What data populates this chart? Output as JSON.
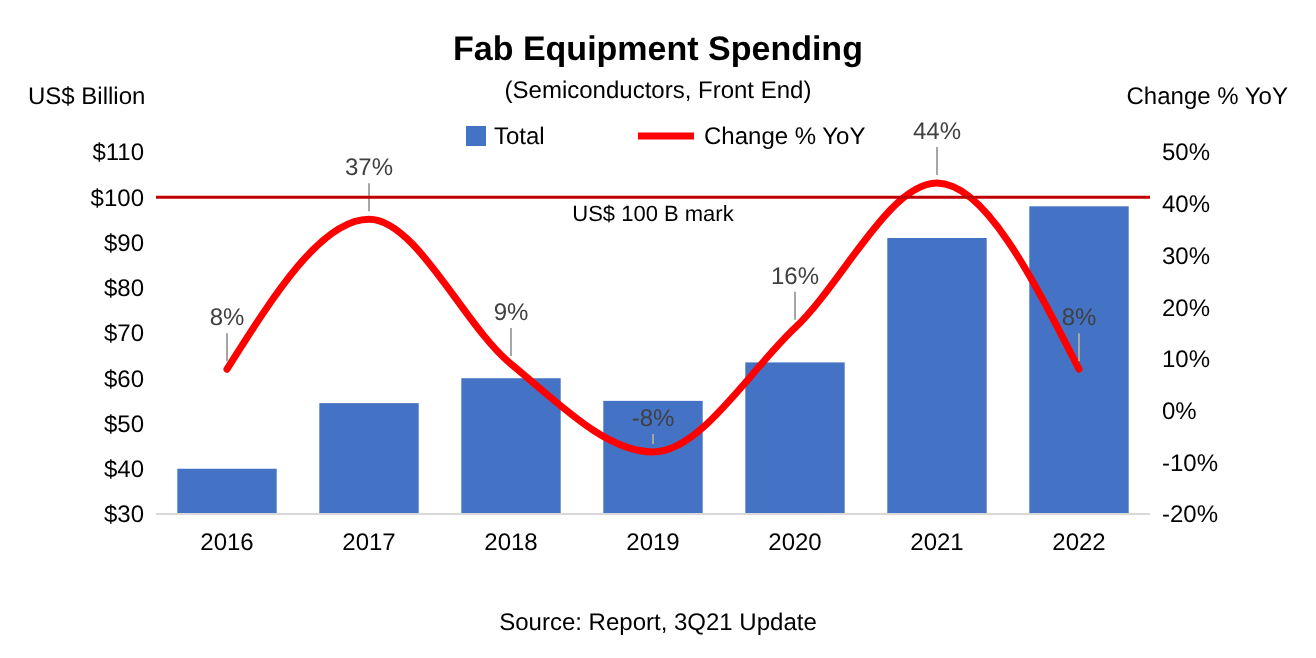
{
  "chart_data": {
    "type": "bar",
    "title": "Fab Equipment Spending",
    "subtitle": "(Semiconductors, Front End)",
    "ylabel": "US$ Billion",
    "y2label": "Change % YoY",
    "categories": [
      "2016",
      "2017",
      "2018",
      "2019",
      "2020",
      "2021",
      "2022"
    ],
    "series": [
      {
        "name": "Total",
        "color": "#4472c4",
        "values": [
          40,
          54.5,
          60,
          55,
          63.5,
          91,
          98
        ]
      },
      {
        "name": "Change % YoY",
        "type": "line",
        "axis": "y2",
        "color": "#ff0000",
        "values": [
          8,
          37,
          9,
          -8,
          16,
          44,
          8
        ],
        "value_labels": [
          "8%",
          "37%",
          "9%",
          "-8%",
          "16%",
          "44%",
          "8%"
        ]
      }
    ],
    "ylim": [
      30,
      110
    ],
    "yticks": [
      {
        "value": 30,
        "label": "$30"
      },
      {
        "value": 40,
        "label": "$40"
      },
      {
        "value": 50,
        "label": "$50"
      },
      {
        "value": 60,
        "label": "$60"
      },
      {
        "value": 70,
        "label": "$70"
      },
      {
        "value": 80,
        "label": "$80"
      },
      {
        "value": 90,
        "label": "$90"
      },
      {
        "value": 100,
        "label": "$100"
      },
      {
        "value": 110,
        "label": "$110"
      }
    ],
    "y2lim": [
      -20,
      50
    ],
    "y2ticks": [
      {
        "value": -20,
        "label": "-20%"
      },
      {
        "value": -10,
        "label": "-10%"
      },
      {
        "value": 0,
        "label": "0%"
      },
      {
        "value": 10,
        "label": "10%"
      },
      {
        "value": 20,
        "label": "20%"
      },
      {
        "value": 30,
        "label": "30%"
      },
      {
        "value": 40,
        "label": "40%"
      },
      {
        "value": 50,
        "label": "50%"
      }
    ],
    "ref_lines": [
      {
        "axis": "y",
        "value": 100,
        "label": "US$ 100 B mark",
        "color": "#c00000"
      }
    ],
    "legend": "top",
    "marker": "none",
    "line_style": "solid",
    "annotations": [
      "Source: Report, 3Q21 Update"
    ]
  }
}
